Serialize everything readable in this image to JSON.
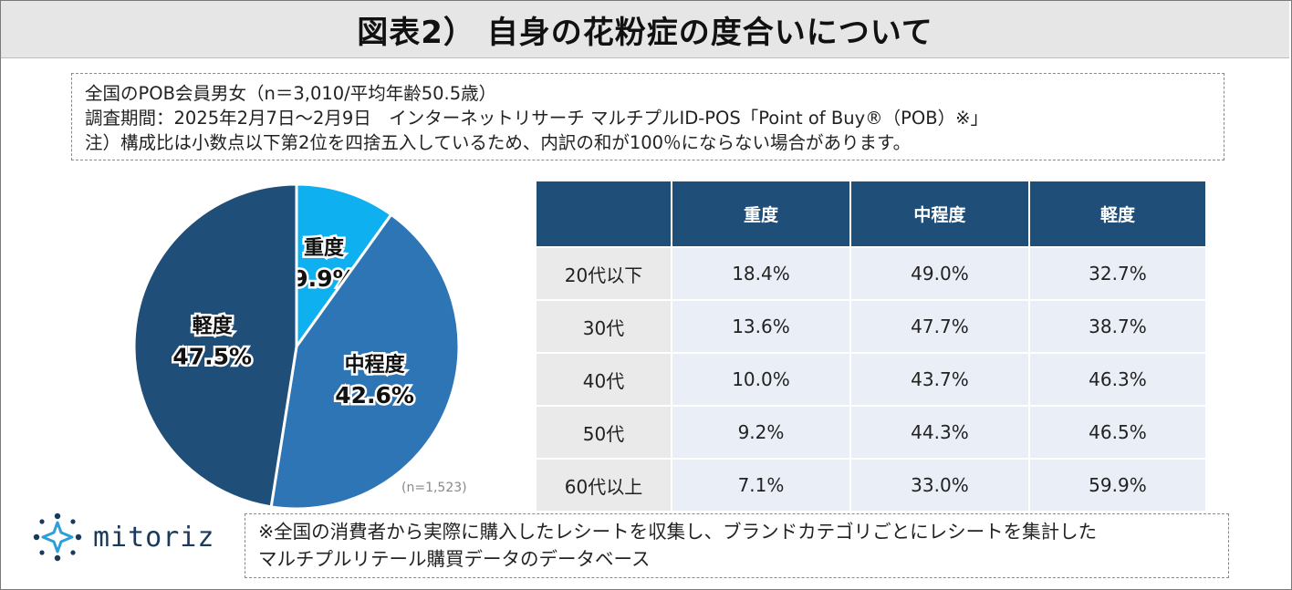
{
  "title": "図表2） 自身の花粉症の度合いについて",
  "notes": [
    "全国のPOB会員男女（n＝3,010/平均年齢50.5歳）",
    "調査期間：2025年2月7日〜2月9日　インターネットリサーチ マルチプルID-POS「Point of Buy®（POB）※」",
    "注）構成比は小数点以下第2位を四捨五入しているため、内訳の和が100％にならない場合があります。"
  ],
  "chart_data": [
    {
      "type": "pie",
      "n_label": "(n=1,523)",
      "slices": [
        {
          "label": "重度",
          "value": 9.9,
          "value_label": "9.9%",
          "color": "#0eb0ef"
        },
        {
          "label": "中程度",
          "value": 42.6,
          "value_label": "42.6%",
          "color": "#2e75b6"
        },
        {
          "label": "軽度",
          "value": 47.5,
          "value_label": "47.5%",
          "color": "#1f4e79"
        }
      ]
    },
    {
      "type": "table",
      "columns": [
        "",
        "重度",
        "中程度",
        "軽度"
      ],
      "rows": [
        {
          "label": "20代以下",
          "values": [
            "18.4%",
            "49.0%",
            "32.7%"
          ]
        },
        {
          "label": "30代",
          "values": [
            "13.6%",
            "47.7%",
            "38.7%"
          ]
        },
        {
          "label": "40代",
          "values": [
            "10.0%",
            "43.7%",
            "46.3%"
          ]
        },
        {
          "label": "50代",
          "values": [
            "9.2%",
            "44.3%",
            "46.5%"
          ]
        },
        {
          "label": "60代以上",
          "values": [
            "7.1%",
            "33.0%",
            "59.9%"
          ]
        }
      ],
      "header_color": "#1f4e79"
    }
  ],
  "logo": {
    "text": "mitoriz",
    "icon": "sparkle-star-icon",
    "color": "#1a3a5c"
  },
  "footer": [
    "※全国の消費者から実際に購入したレシートを収集し、ブランドカテゴリごとにレシートを集計した",
    "マルチプルリテール購買データのデータベース"
  ]
}
